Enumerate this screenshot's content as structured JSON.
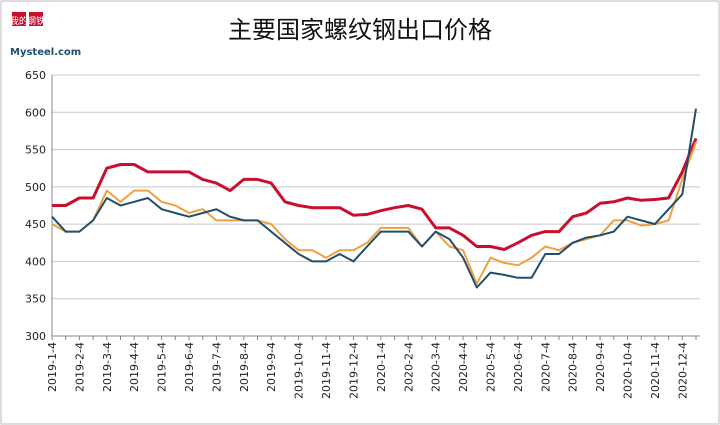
{
  "logo": {
    "marks": [
      "我的",
      "钢铁"
    ],
    "site": "Mysteel.com"
  },
  "chart_data": {
    "type": "line",
    "title": "主要国家螺纹钢出口价格",
    "categories": [
      "2019-1-4",
      null,
      "2019-2-4",
      null,
      "2019-3-4",
      null,
      "2019-4-4",
      null,
      "2019-5-4",
      null,
      "2019-6-4",
      null,
      "2019-7-4",
      null,
      "2019-8-4",
      null,
      "2019-9-4",
      null,
      "2019-10-4",
      null,
      "2019-11-4",
      null,
      "2019-12-4",
      null,
      "2020-1-4",
      null,
      "2020-2-4",
      null,
      "2020-3-4",
      null,
      "2020-4-4",
      null,
      "2020-5-4",
      null,
      "2020-6-4",
      null,
      "2020-7-4",
      null,
      "2020-8-4",
      null,
      "2020-9-4",
      null,
      "2020-10-4",
      null,
      "2020-11-4",
      null,
      "2020-12-4",
      null
    ],
    "series": [
      {
        "color": "#c8102e",
        "values": [
          475,
          475,
          485,
          485,
          525,
          530,
          530,
          520,
          520,
          520,
          520,
          510,
          505,
          495,
          510,
          510,
          505,
          480,
          475,
          472,
          472,
          472,
          462,
          463,
          468,
          472,
          475,
          470,
          445,
          445,
          435,
          420,
          420,
          416,
          425,
          435,
          440,
          440,
          460,
          465,
          478,
          480,
          485,
          482,
          483,
          485,
          520,
          565
        ]
      },
      {
        "color": "#f0a040",
        "values": [
          450,
          440,
          440,
          455,
          495,
          480,
          495,
          495,
          480,
          475,
          465,
          470,
          455,
          455,
          455,
          455,
          450,
          430,
          415,
          415,
          405,
          415,
          415,
          425,
          445,
          445,
          445,
          420,
          440,
          420,
          415,
          370,
          405,
          398,
          395,
          405,
          420,
          415,
          425,
          430,
          435,
          455,
          455,
          448,
          450,
          455,
          510,
          560
        ]
      },
      {
        "color": "#1f4e6e",
        "values": [
          460,
          440,
          440,
          455,
          485,
          475,
          480,
          485,
          470,
          465,
          460,
          465,
          470,
          460,
          455,
          455,
          440,
          425,
          410,
          400,
          400,
          410,
          400,
          420,
          440,
          440,
          440,
          420,
          440,
          430,
          405,
          365,
          385,
          382,
          378,
          378,
          410,
          410,
          425,
          432,
          435,
          440,
          460,
          455,
          450,
          470,
          490,
          605
        ]
      }
    ],
    "ylim": [
      300,
      650
    ],
    "yticks": [
      300,
      350,
      400,
      450,
      500,
      550,
      600,
      650
    ],
    "grid": true
  }
}
